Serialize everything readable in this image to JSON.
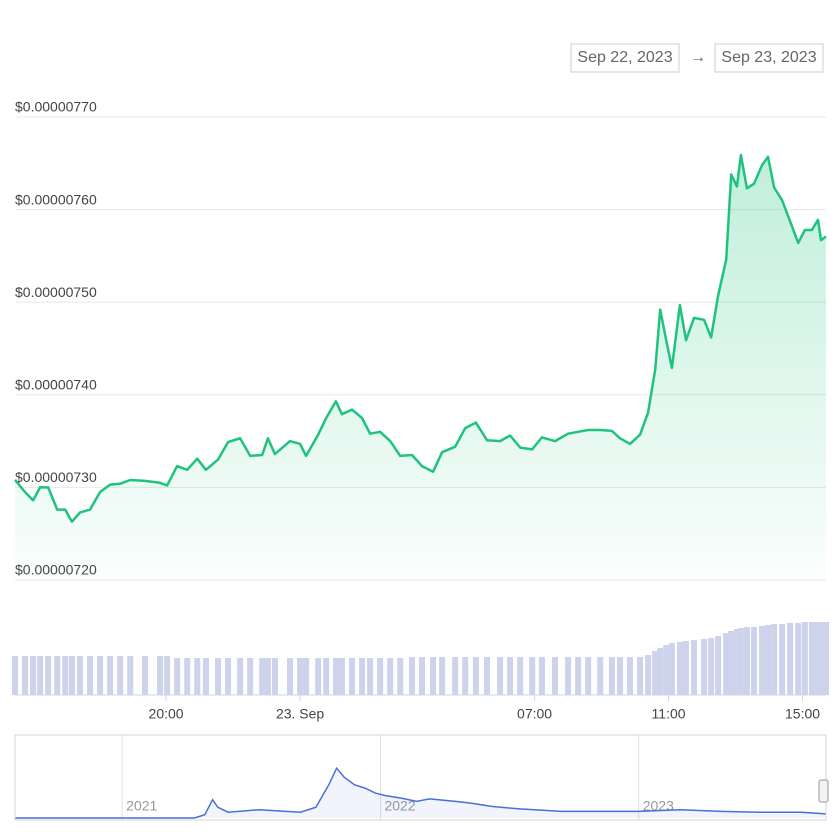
{
  "chart_data": [
    {
      "type": "area",
      "date_from": "Sep 22, 2023",
      "range_separator": "→",
      "date_to": "Sep 23, 2023",
      "color": "#1ec47e",
      "x": [
        15.49,
        15.79,
        16.03,
        16.24,
        16.48,
        16.75,
        16.99,
        17.19,
        17.43,
        17.73,
        18.03,
        18.33,
        18.63,
        18.93,
        19.37,
        19.82,
        20.03,
        20.33,
        20.63,
        20.93,
        21.19,
        21.55,
        21.85,
        22.21,
        22.51,
        22.87,
        23.04,
        23.25,
        23.7,
        24.0,
        24.18,
        24.54,
        24.78,
        25.07,
        25.25,
        25.55,
        25.85,
        26.09,
        26.39,
        26.69,
        26.99,
        27.34,
        27.64,
        27.97,
        28.24,
        28.63,
        28.93,
        29.25,
        29.58,
        29.97,
        30.27,
        30.57,
        30.93,
        31.22,
        31.61,
        32.0,
        32.3,
        32.6,
        32.96,
        33.31,
        33.55,
        33.85,
        34.15,
        34.39,
        34.6,
        34.75,
        34.93,
        35.1,
        35.34,
        35.52,
        35.76,
        36.06,
        36.27,
        36.48,
        36.72,
        36.87,
        37.04,
        37.16,
        37.34,
        37.55,
        37.79,
        37.97,
        38.15,
        38.39,
        38.63,
        38.87,
        39.07,
        39.28,
        39.46,
        39.55,
        39.7
      ],
      "values": [
        7.308e-06,
        7.295e-06,
        7.286e-06,
        7.3e-06,
        7.3e-06,
        7.276e-06,
        7.276e-06,
        7.263e-06,
        7.273e-06,
        7.276e-06,
        7.295e-06,
        7.303e-06,
        7.304e-06,
        7.308e-06,
        7.307e-06,
        7.305e-06,
        7.302e-06,
        7.323e-06,
        7.319e-06,
        7.331e-06,
        7.319e-06,
        7.33e-06,
        7.349e-06,
        7.353e-06,
        7.334e-06,
        7.335e-06,
        7.353e-06,
        7.336e-06,
        7.35e-06,
        7.347e-06,
        7.334e-06,
        7.357e-06,
        7.375e-06,
        7.393e-06,
        7.379e-06,
        7.384e-06,
        7.375e-06,
        7.358e-06,
        7.36e-06,
        7.35e-06,
        7.334e-06,
        7.335e-06,
        7.323e-06,
        7.317e-06,
        7.338e-06,
        7.344e-06,
        7.364e-06,
        7.37e-06,
        7.351e-06,
        7.35e-06,
        7.356e-06,
        7.343e-06,
        7.341e-06,
        7.354e-06,
        7.35e-06,
        7.358e-06,
        7.36e-06,
        7.362e-06,
        7.362e-06,
        7.361e-06,
        7.353e-06,
        7.347e-06,
        7.357e-06,
        7.381e-06,
        7.427e-06,
        7.492e-06,
        7.459e-06,
        7.429e-06,
        7.497e-06,
        7.459e-06,
        7.483e-06,
        7.481e-06,
        7.462e-06,
        7.507e-06,
        7.546e-06,
        7.638e-06,
        7.625e-06,
        7.659e-06,
        7.623e-06,
        7.628e-06,
        7.648e-06,
        7.657e-06,
        7.624e-06,
        7.61e-06,
        7.587e-06,
        7.564e-06,
        7.578e-06,
        7.578e-06,
        7.589e-06,
        7.567e-06,
        7.571e-06
      ],
      "xlim": [
        15.49,
        39.7
      ],
      "ylim": [
        7.2e-06,
        7.7e-06
      ],
      "xticks": [
        {
          "value": 20,
          "label": "20:00"
        },
        {
          "value": 24,
          "label": "23. Sep"
        },
        {
          "value": 31,
          "label": "07:00"
        },
        {
          "value": 35,
          "label": "11:00"
        },
        {
          "value": 39,
          "label": "15:00"
        }
      ],
      "yticks": [
        {
          "value": 7.2e-06,
          "label": "$0.00000720"
        },
        {
          "value": 7.3e-06,
          "label": "$0.00000730"
        },
        {
          "value": 7.4e-06,
          "label": "$0.00000740"
        },
        {
          "value": 7.5e-06,
          "label": "$0.00000750"
        },
        {
          "value": 7.6e-06,
          "label": "$0.00000760"
        },
        {
          "value": 7.7e-06,
          "label": "$0.00000770"
        }
      ],
      "grid": true,
      "volume": {
        "color": "#cdd3ea",
        "ylim": [
          0,
          80
        ],
        "values": [
          39,
          39,
          39,
          39,
          39,
          39,
          39,
          39,
          39,
          39,
          39,
          39,
          39,
          39,
          39,
          39,
          39,
          37,
          37,
          37,
          37,
          37,
          37,
          37,
          37,
          37,
          37,
          37,
          37,
          37,
          37,
          37,
          37,
          37,
          37,
          37,
          37,
          37,
          37,
          37,
          37,
          38,
          38,
          38,
          38,
          38,
          38,
          38,
          38,
          38,
          38,
          38,
          38,
          38,
          38,
          38,
          38,
          38,
          38,
          38,
          38,
          38,
          38,
          40,
          44,
          47,
          50,
          52,
          53,
          54,
          55,
          56,
          57,
          59,
          62,
          64,
          66,
          67,
          68,
          68,
          69,
          70,
          71,
          71,
          72,
          72,
          73,
          73,
          73,
          73,
          73
        ]
      }
    },
    {
      "type": "line",
      "color": "#4a6fd6",
      "x": [
        2020.585,
        2021.28,
        2021.32,
        2021.35,
        2021.37,
        2021.41,
        2021.53,
        2021.69,
        2021.75,
        2021.77,
        2021.8,
        2021.83,
        2021.86,
        2021.9,
        2021.94,
        2021.98,
        2022.02,
        2022.08,
        2022.14,
        2022.19,
        2022.29,
        2022.35,
        2022.43,
        2022.54,
        2022.7,
        2022.85,
        2023.0,
        2023.16,
        2023.32,
        2023.47,
        2023.63,
        2023.725
      ],
      "values": [
        0,
        0,
        4,
        22,
        13,
        7,
        10,
        7,
        13,
        24,
        40,
        60,
        49,
        40,
        36,
        30,
        27,
        24,
        20,
        23,
        20,
        18,
        14,
        11,
        8,
        8,
        8,
        10,
        8,
        7,
        7,
        5
      ],
      "xlim": [
        2020.585,
        2023.725
      ],
      "ylim": [
        0,
        100
      ],
      "xticks": [
        2021,
        2022,
        2023
      ]
    }
  ]
}
